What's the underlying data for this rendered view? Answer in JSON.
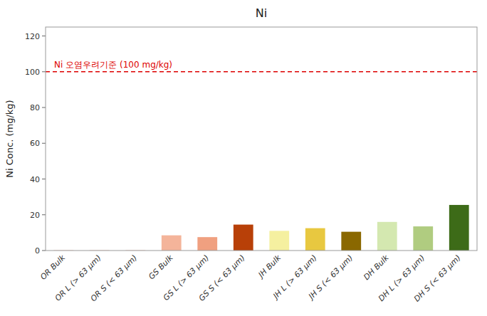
{
  "chart_data": {
    "type": "bar",
    "title": "Ni",
    "ylabel": "Ni Conc. (mg/kg)",
    "categories": [
      "OR Bulk",
      "OR L (> 63 μm)",
      "OR S (< 63 μm)",
      "GS Bulk",
      "GS L (> 63 μm)",
      "GS S (< 63 μm)",
      "JH Bulk",
      "JH L (> 63 μm)",
      "JH S (< 63 μm)",
      "DH Bulk",
      "DH L (> 63 μm)",
      "DH S (< 63 μm)"
    ],
    "values": [
      0.2,
      0.2,
      0.2,
      8.5,
      7.5,
      14.5,
      11.0,
      12.5,
      10.5,
      16.0,
      13.5,
      25.5
    ],
    "colors": [
      "#f9cdb8",
      "#f9cdb8",
      "#f9cdb8",
      "#f4b49a",
      "#f0a080",
      "#b84008",
      "#f5f0a0",
      "#e8c840",
      "#8a6800",
      "#d4e8b0",
      "#b0cc80",
      "#3d6b18"
    ],
    "annotations": [
      {
        "text": "Ni 오염우려기준 (100 mg/kg)",
        "y": 100,
        "color": "#dd0000",
        "line_style": "dashed"
      }
    ],
    "ylim": [
      0,
      125
    ],
    "yticks": [
      0,
      20,
      40,
      60,
      80,
      100,
      120
    ],
    "grid": false
  }
}
